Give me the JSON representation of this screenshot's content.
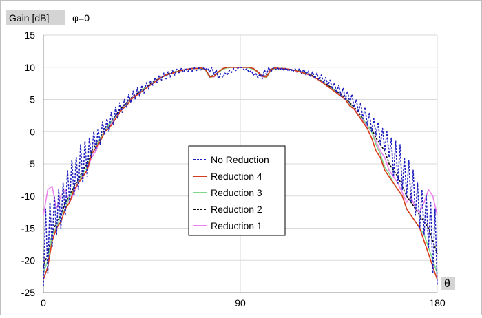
{
  "chart_data": {
    "type": "line",
    "y_title": "Gain [dB]",
    "phi_label": "φ=0",
    "x_title": "θ",
    "xlim": [
      0,
      180
    ],
    "ylim": [
      -25,
      15
    ],
    "x_ticks": [
      0,
      90,
      180
    ],
    "y_ticks": [
      15,
      10,
      5,
      0,
      -5,
      -10,
      -15,
      -20,
      -25
    ],
    "grid": true,
    "legend_position": "center",
    "series": [
      {
        "name": "No Reduction",
        "color": "#1f1fbf",
        "dash": "dashed",
        "x": [
          0,
          1,
          2,
          3,
          4,
          5,
          6,
          7,
          8,
          9,
          10,
          11,
          12,
          13,
          14,
          15,
          16,
          17,
          18,
          19,
          20,
          21,
          22,
          23,
          24,
          25,
          26,
          27,
          28,
          29,
          30,
          31,
          32,
          33,
          34,
          35,
          36,
          37,
          38,
          39,
          40,
          41,
          42,
          43,
          44,
          45,
          46,
          47,
          48,
          49,
          50,
          51,
          52,
          53,
          54,
          55,
          56,
          57,
          58,
          59,
          60,
          61,
          62,
          63,
          64,
          65,
          66,
          67,
          68,
          69,
          70,
          71,
          72,
          73,
          74,
          75,
          76,
          77,
          78,
          79,
          80,
          81,
          82,
          83,
          84,
          85,
          86,
          87,
          88,
          89,
          90,
          91,
          92,
          93,
          94,
          95,
          96,
          97,
          98,
          99,
          100,
          101,
          102,
          103,
          104,
          105,
          106,
          107,
          108,
          109,
          110,
          111,
          112,
          113,
          114,
          115,
          116,
          117,
          118,
          119,
          120,
          121,
          122,
          123,
          124,
          125,
          126,
          127,
          128,
          129,
          130,
          131,
          132,
          133,
          134,
          135,
          136,
          137,
          138,
          139,
          140,
          141,
          142,
          143,
          144,
          145,
          146,
          147,
          148,
          149,
          150,
          151,
          152,
          153,
          154,
          155,
          156,
          157,
          158,
          159,
          160,
          161,
          162,
          163,
          164,
          165,
          166,
          167,
          168,
          169,
          170,
          171,
          172,
          173,
          174,
          175,
          176,
          177,
          178,
          179,
          180
        ],
        "y": [
          -24,
          -12,
          -22,
          -11,
          -18,
          -10,
          -16,
          -9,
          -15,
          -8,
          -13,
          -6,
          -11,
          -4.5,
          -10,
          -4,
          -9,
          -2,
          -8,
          -1.5,
          -7,
          -1,
          -4,
          0,
          -3,
          0.5,
          -2,
          1.5,
          -0.5,
          2,
          0,
          3,
          1,
          3.8,
          2,
          4.5,
          3,
          5,
          3.8,
          5.8,
          4.5,
          6.3,
          5,
          6.8,
          5.5,
          7.2,
          6,
          7.6,
          6.6,
          8,
          7.2,
          8.4,
          7.6,
          8.8,
          8,
          9.1,
          8.2,
          9.3,
          8.5,
          9.5,
          8.8,
          9.7,
          9,
          9.8,
          9.2,
          9.8,
          9.3,
          9.8,
          9.4,
          9.9,
          9.5,
          9.9,
          9.6,
          9.9,
          9.6,
          9.9,
          9.3,
          10,
          8.9,
          9.6,
          8.2,
          9,
          8.4,
          9.1,
          8.8,
          9.5,
          9.2,
          9.8,
          9.5,
          9.9,
          10,
          9.9,
          9.5,
          9.8,
          9.2,
          9.5,
          8.8,
          9.1,
          8.4,
          9,
          8.2,
          9.6,
          8.9,
          10,
          9.3,
          9.9,
          9.6,
          9.9,
          9.6,
          9.9,
          9.5,
          9.9,
          9.4,
          9.8,
          9.3,
          9.8,
          9.2,
          9.8,
          9,
          9.7,
          8.8,
          9.5,
          8.5,
          9.3,
          8.2,
          9.1,
          8,
          8.8,
          7.6,
          8.4,
          7.2,
          8,
          6.6,
          7.6,
          6,
          7.2,
          5.5,
          6.8,
          5,
          6.3,
          4.5,
          5.8,
          3.8,
          5,
          3,
          4.5,
          2,
          3.8,
          1,
          3,
          0,
          2,
          -0.5,
          1.5,
          -2,
          0.5,
          -3,
          0,
          -4,
          -1,
          -7,
          -1.5,
          -8,
          -2,
          -9,
          -4,
          -10,
          -4.5,
          -11,
          -6,
          -13,
          -8,
          -15,
          -9,
          -16,
          -10,
          -18,
          -11,
          -22,
          -12,
          -24
        ]
      },
      {
        "name": "Reduction 4",
        "color": "#d93a1a",
        "dash": "solid",
        "x": [
          0,
          2,
          4,
          6,
          8,
          10,
          12,
          14,
          16,
          18,
          20,
          22,
          24,
          26,
          28,
          30,
          32,
          34,
          36,
          38,
          40,
          42,
          44,
          46,
          48,
          50,
          52,
          54,
          56,
          58,
          60,
          62,
          64,
          66,
          68,
          70,
          72,
          74,
          76,
          78,
          80,
          82,
          84,
          86,
          88,
          90,
          92,
          94,
          96,
          98,
          100,
          102,
          104,
          106,
          108,
          110,
          112,
          114,
          116,
          118,
          120,
          122,
          124,
          126,
          128,
          130,
          132,
          134,
          136,
          138,
          140,
          142,
          144,
          146,
          148,
          150,
          152,
          154,
          156,
          158,
          160,
          162,
          164,
          166,
          168,
          170,
          172,
          174,
          176,
          178,
          180
        ],
        "y": [
          -23,
          -21,
          -17,
          -15,
          -14,
          -12,
          -11,
          -9,
          -8,
          -7,
          -6,
          -3.5,
          -2.5,
          -1.5,
          0,
          0.5,
          1.5,
          2.5,
          3.5,
          4,
          5,
          5.5,
          6,
          6.5,
          7,
          7.5,
          8,
          8.4,
          8.8,
          9,
          9.2,
          9.4,
          9.6,
          9.7,
          9.8,
          9.8,
          9.9,
          9.7,
          8.5,
          8.6,
          9.3,
          9.8,
          10,
          10,
          10,
          10,
          10,
          10,
          9.8,
          9.3,
          8.6,
          8.5,
          9.7,
          9.9,
          9.8,
          9.8,
          9.7,
          9.6,
          9.4,
          9.2,
          9,
          8.8,
          8.4,
          8,
          7.5,
          7,
          6.5,
          6,
          5.5,
          5,
          4,
          3.5,
          2.5,
          1.5,
          0.5,
          -1,
          -3,
          -4,
          -6,
          -7,
          -8,
          -9,
          -10,
          -12,
          -13,
          -14,
          -15,
          -17,
          -19,
          -21,
          -23
        ]
      },
      {
        "name": "Reduction 3",
        "color": "#7fd98f",
        "dash": "solid",
        "x": [
          0,
          2,
          4,
          6,
          8,
          10,
          12,
          14,
          16,
          18,
          20,
          22,
          24,
          26,
          28,
          30,
          32,
          34,
          36,
          38,
          40,
          42,
          44,
          46,
          48,
          50,
          52,
          54,
          56,
          58,
          60,
          62,
          64,
          66,
          68,
          70,
          72,
          74,
          76,
          78,
          80,
          82,
          84,
          86,
          88,
          90,
          92,
          94,
          96,
          98,
          100,
          102,
          104,
          106,
          108,
          110,
          112,
          114,
          116,
          118,
          120,
          122,
          124,
          126,
          128,
          130,
          132,
          134,
          136,
          138,
          140,
          142,
          144,
          146,
          148,
          150,
          152,
          154,
          156,
          158,
          160,
          162,
          164,
          166,
          168,
          170,
          172,
          174,
          176,
          178,
          180
        ],
        "y": [
          -22,
          -20,
          -16,
          -15,
          -13,
          -12,
          -10,
          -9,
          -8,
          -6.5,
          -5.5,
          -3.5,
          -2.5,
          -1,
          0,
          1,
          2,
          2.5,
          3.5,
          4.2,
          5,
          5.5,
          6,
          6.7,
          7,
          7.6,
          8,
          8.4,
          8.8,
          9,
          9.3,
          9.4,
          9.6,
          9.7,
          9.8,
          9.8,
          9.8,
          9.6,
          8.4,
          8.6,
          9.2,
          9.7,
          9.9,
          10,
          10,
          10,
          10,
          9.9,
          9.7,
          9.2,
          8.6,
          8.4,
          9.6,
          9.8,
          9.8,
          9.8,
          9.7,
          9.6,
          9.4,
          9.3,
          9,
          8.8,
          8.4,
          8,
          7.6,
          7,
          6.7,
          6,
          5.5,
          5,
          4.2,
          3.5,
          2.5,
          2,
          1,
          0,
          -2,
          -3.5,
          -5.5,
          -6.5,
          -8,
          -9,
          -10,
          -12,
          -13,
          -14,
          -15,
          -16,
          -18,
          -20,
          -22
        ]
      },
      {
        "name": "Reduction 2",
        "color": "#111111",
        "dash": "dashed",
        "x": [
          0,
          2,
          4,
          6,
          8,
          10,
          12,
          14,
          16,
          18,
          20,
          22,
          24,
          26,
          28,
          30,
          32,
          34,
          36,
          38,
          40,
          42,
          44,
          46,
          48,
          50,
          52,
          54,
          56,
          58,
          60,
          62,
          64,
          66,
          68,
          70,
          72,
          74,
          76,
          78,
          80,
          82,
          84,
          86,
          88,
          90,
          92,
          94,
          96,
          98,
          100,
          102,
          104,
          106,
          108,
          110,
          112,
          114,
          116,
          118,
          120,
          122,
          124,
          126,
          128,
          130,
          132,
          134,
          136,
          138,
          140,
          142,
          144,
          146,
          148,
          150,
          152,
          154,
          156,
          158,
          160,
          162,
          164,
          166,
          168,
          170,
          172,
          174,
          176,
          178,
          180
        ],
        "y": [
          -21,
          -19,
          -16,
          -14,
          -13,
          -11,
          -10,
          -8.5,
          -7.5,
          -6,
          -5,
          -3,
          -2,
          -1,
          0.5,
          1,
          2,
          3,
          3.8,
          4.5,
          5.2,
          5.8,
          6.2,
          6.8,
          7.2,
          7.7,
          8.1,
          8.5,
          8.9,
          9.1,
          9.3,
          9.5,
          9.6,
          9.7,
          9.8,
          9.8,
          9.9,
          9.7,
          8.6,
          8.7,
          9.3,
          9.8,
          10,
          10,
          10,
          10,
          10,
          10,
          9.8,
          9.3,
          8.7,
          8.6,
          9.7,
          9.9,
          9.8,
          9.8,
          9.7,
          9.6,
          9.5,
          9.3,
          9.1,
          8.9,
          8.5,
          8.1,
          7.7,
          7.2,
          6.8,
          6.2,
          5.8,
          5.2,
          4.5,
          3.8,
          3,
          2,
          1,
          0.5,
          -1,
          -2,
          -3,
          -5,
          -6,
          -7,
          -8.5,
          -10,
          -11,
          -12,
          -13,
          -14,
          -15,
          -17,
          -19
        ]
      },
      {
        "name": "Reduction 1",
        "color": "#ee82ee",
        "dash": "solid",
        "x": [
          0,
          2,
          4,
          6,
          8,
          10,
          12,
          14,
          16,
          18,
          20,
          22,
          24,
          26,
          28,
          30,
          32,
          34,
          36,
          38,
          40,
          42,
          44,
          46,
          48,
          50,
          52,
          54,
          56,
          58,
          60,
          62,
          64,
          66,
          68,
          70,
          72,
          74,
          76,
          78,
          80,
          82,
          84,
          86,
          88,
          90,
          92,
          94,
          96,
          98,
          100,
          102,
          104,
          106,
          108,
          110,
          112,
          114,
          116,
          118,
          120,
          122,
          124,
          126,
          128,
          130,
          132,
          134,
          136,
          138,
          140,
          142,
          144,
          146,
          148,
          150,
          152,
          154,
          156,
          158,
          160,
          162,
          164,
          166,
          168,
          170,
          172,
          174,
          176,
          178,
          180
        ],
        "y": [
          -13,
          -9,
          -8.5,
          -12,
          -10,
          -9,
          -11,
          -9.5,
          -8,
          -7,
          -6,
          -4,
          -3,
          -1.5,
          0,
          0.8,
          1.8,
          2.6,
          3.6,
          4.3,
          5,
          5.6,
          6.1,
          6.6,
          7.1,
          7.5,
          8,
          8.4,
          8.8,
          9,
          9.2,
          9.4,
          9.6,
          9.7,
          9.8,
          9.8,
          9.8,
          9.7,
          8.5,
          8.5,
          9.2,
          9.7,
          10,
          10,
          10,
          10,
          10,
          10,
          9.7,
          9.2,
          8.5,
          8.5,
          9.7,
          9.8,
          9.8,
          9.8,
          9.7,
          9.6,
          9.4,
          9.2,
          9,
          8.8,
          8.4,
          8,
          7.5,
          7.1,
          6.6,
          6.1,
          5.6,
          5,
          4.3,
          3.6,
          2.6,
          1.8,
          0.8,
          0,
          -1.5,
          -3,
          -4,
          -6,
          -7,
          -8,
          -9.5,
          -11,
          -10,
          -12,
          -12.5,
          -11,
          -9,
          -10,
          -13
        ]
      }
    ]
  }
}
